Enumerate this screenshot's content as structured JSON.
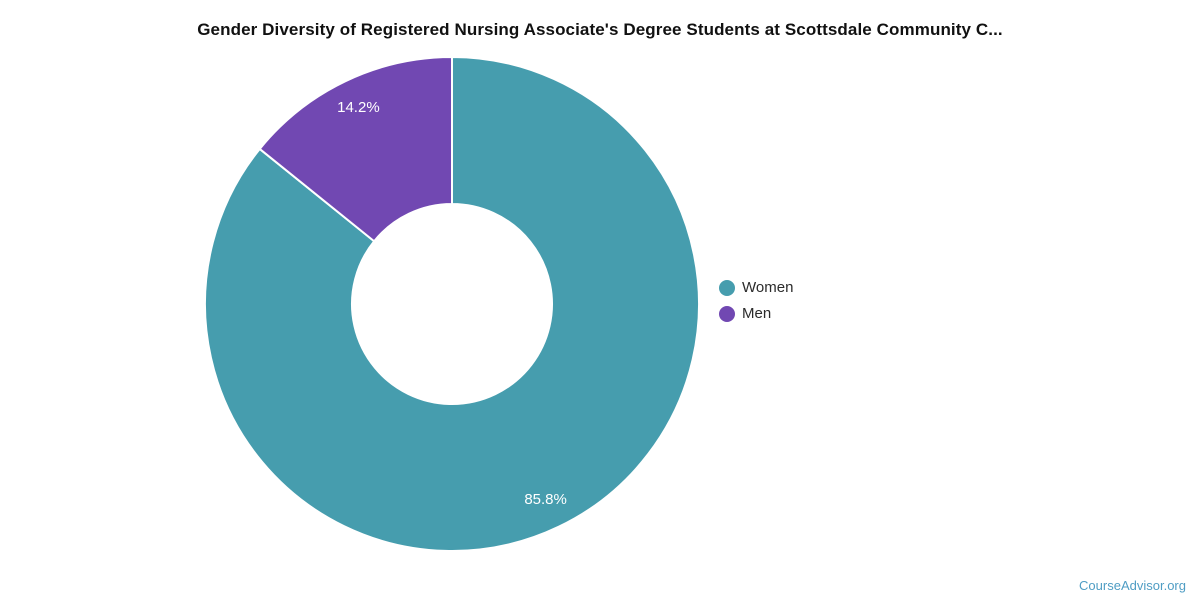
{
  "title": "Gender Diversity of Registered Nursing Associate's Degree Students at Scottsdale Community C...",
  "chart_data": {
    "type": "pie",
    "subtype": "donut",
    "title": "Gender Diversity of Registered Nursing Associate's Degree Students at Scottsdale Community C...",
    "units": "%",
    "start_angle_deg": 0,
    "direction": "clockwise",
    "inner_radius_ratio": 0.405,
    "legend_position": "right",
    "slice_label_color": "#ffffff",
    "slice_border_color": "#ffffff",
    "series": [
      {
        "name": "Women",
        "value": 85.8,
        "label": "85.8%",
        "color": "#469DAE"
      },
      {
        "name": "Men",
        "value": 14.2,
        "label": "14.2%",
        "color": "#7148B2"
      }
    ]
  },
  "legend": {
    "items": [
      {
        "label": "Women",
        "color": "#469DAE"
      },
      {
        "label": "Men",
        "color": "#7148B2"
      }
    ]
  },
  "watermark": {
    "text": "CourseAdvisor.org",
    "color": "#4F9DC4"
  }
}
